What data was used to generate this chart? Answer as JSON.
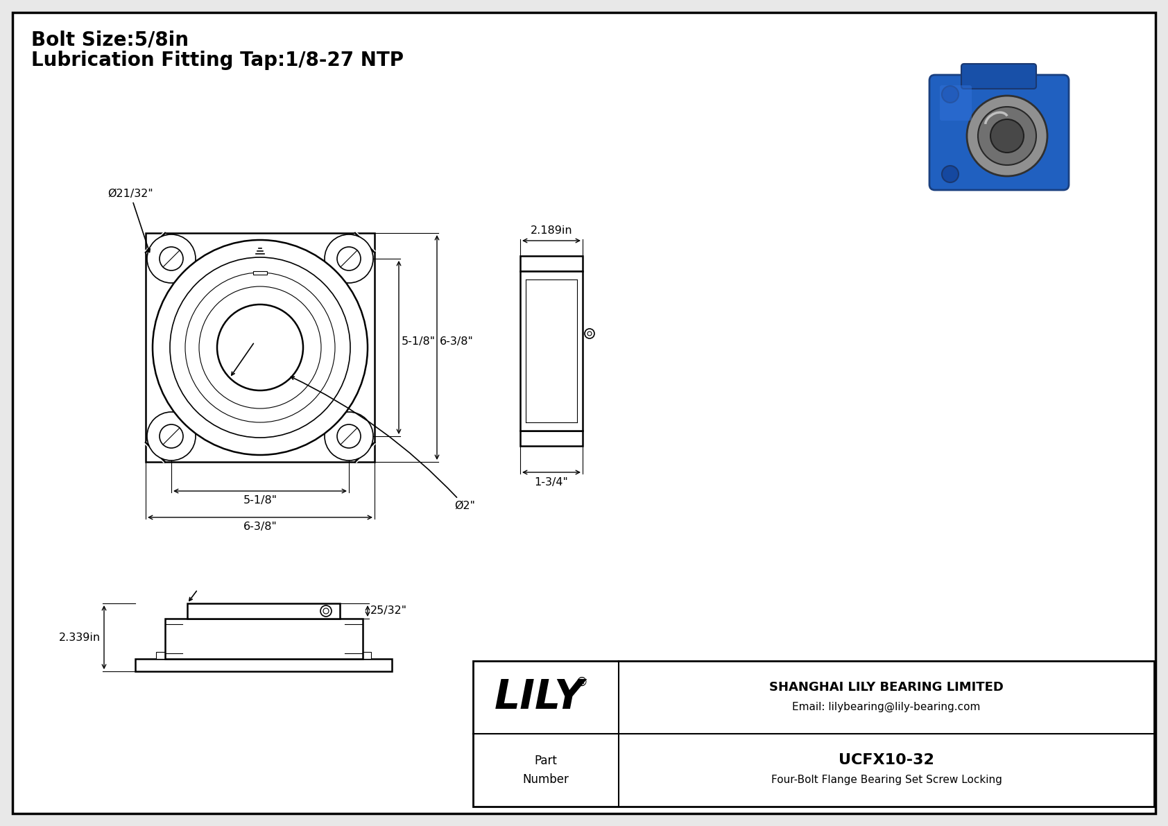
{
  "bg_color": "#e8e8e8",
  "line_color": "#000000",
  "title_line1": "Bolt Size:5/8in",
  "title_line2": "Lubrication Fitting Tap:1/8-27 NTP",
  "title_fontsize": 20,
  "dim_fontsize": 11.5,
  "part_number": "UCFX10-32",
  "part_description": "Four-Bolt Flange Bearing Set Screw Locking",
  "company_name": "SHANGHAI LILY BEARING LIMITED",
  "company_email": "Email: lilybearing@lily-bearing.com",
  "dim_bolt_hole": "Ø21/32\"",
  "dim_bolt_circle_inner": "5-1/8\"",
  "dim_bolt_circle_outer": "6-3/8\"",
  "dim_shaft": "Ø2\"",
  "dim_vert_inner": "5-1/8\"",
  "dim_vert_outer": "6-3/8\"",
  "dim_side_width": "2.189in",
  "dim_side_depth": "1-3/4\"",
  "dim_front_height": "2.339in",
  "dim_front_step": "25/32\""
}
